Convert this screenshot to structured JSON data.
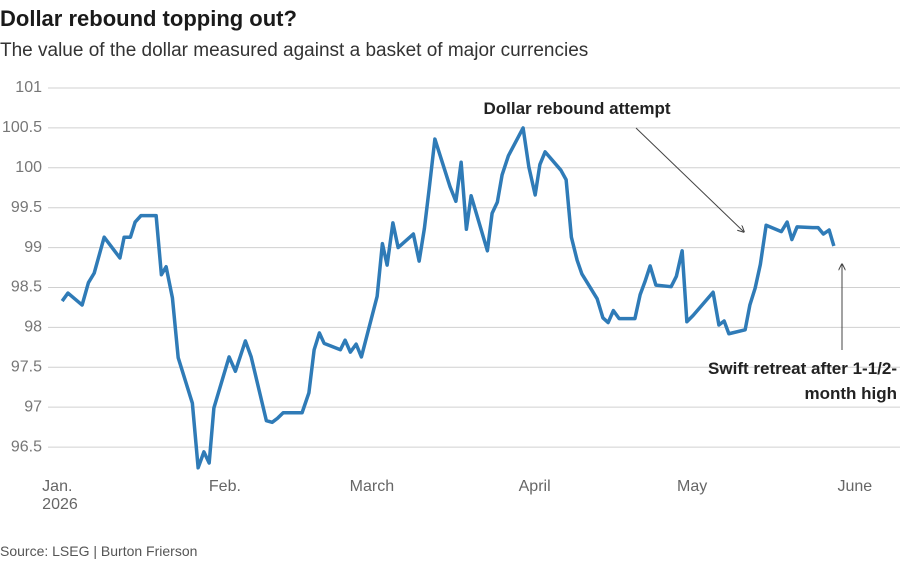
{
  "chart_data": {
    "type": "line",
    "title": "Dollar rebound topping out?",
    "subtitle": "The value of the dollar measured against a basket of major currencies",
    "source": "Source: LSEG | Burton Frierson",
    "annotations": [
      "Dollar rebound attempt",
      "Swift retreat after 1-1/2-\nmonth high"
    ],
    "x": [
      0,
      1.1,
      3.8,
      5.0,
      6.1,
      8.0,
      11.0,
      11.8,
      13.0,
      13.9,
      15.0,
      17.9,
      18.9,
      19.8,
      21.0,
      22.1,
      24.8,
      25.9,
      27.0,
      28.0,
      28.9,
      31.8,
      33.0,
      34.9,
      36.0,
      38.9,
      40.0,
      41.0,
      42.1,
      45.7,
      47.0,
      48.0,
      49.0,
      49.9,
      53.0,
      53.9,
      54.9,
      56.0,
      57.0,
      60.0,
      61.0,
      61.9,
      63.0,
      64.0,
      66.9,
      68.0,
      69.0,
      69.9,
      71.0,
      73.9,
      75.0,
      76.0,
      77.0,
      77.9,
      81.0,
      81.9,
      82.9,
      83.8,
      85.0,
      87.8,
      88.9,
      90.1,
      91.0,
      92.0,
      95.0,
      96.0,
      97.0,
      98.1,
      99.0,
      101.9,
      103.0,
      104.0,
      105.0,
      106.1,
      109.1,
      110.1,
      111.0,
      112.0,
      113.1,
      116.0,
      117.0,
      118.1,
      119.0,
      120.2,
      124.0,
      125.1,
      126.1,
      127.0,
      130.1,
      131.0,
      132.0,
      133.0,
      134.1,
      137.0,
      138.1,
      139.0,
      140.0,
      143.0,
      144.0,
      145.0,
      146.1,
      147.0
    ],
    "series": [
      {
        "color": "#2f7bb7",
        "values": [
          98.33,
          98.43,
          98.28,
          98.56,
          98.68,
          99.13,
          98.87,
          99.13,
          99.13,
          99.32,
          99.4,
          99.4,
          98.66,
          98.76,
          98.37,
          97.62,
          97.05,
          96.24,
          96.44,
          96.3,
          96.99,
          97.63,
          97.45,
          97.83,
          97.63,
          96.83,
          96.81,
          96.86,
          96.93,
          96.93,
          97.18,
          97.72,
          97.93,
          97.8,
          97.72,
          97.84,
          97.69,
          97.79,
          97.63,
          98.39,
          99.05,
          98.78,
          99.31,
          99.0,
          99.17,
          98.83,
          99.24,
          99.73,
          100.36,
          99.76,
          99.58,
          100.07,
          99.23,
          99.65,
          98.96,
          99.43,
          99.57,
          99.91,
          100.15,
          100.5,
          100.01,
          99.66,
          100.04,
          100.2,
          99.97,
          99.85,
          99.13,
          98.84,
          98.67,
          98.36,
          98.12,
          98.06,
          98.21,
          98.11,
          98.11,
          98.41,
          98.57,
          98.77,
          98.53,
          98.51,
          98.64,
          98.96,
          98.07,
          98.15,
          98.44,
          98.03,
          98.08,
          97.92,
          97.97,
          98.28,
          98.49,
          98.79,
          99.28,
          99.2,
          99.32,
          99.1,
          99.26,
          99.25,
          99.25,
          99.17,
          99.22,
          99.02
        ]
      }
    ],
    "xlim": [
      -2.7,
      159.6
    ],
    "xticks": [
      {
        "value": 0,
        "label": "Jan.\n2026"
      },
      {
        "value": 31,
        "label": "Feb."
      },
      {
        "value": 59,
        "label": "March"
      },
      {
        "value": 90,
        "label": "April"
      },
      {
        "value": 120,
        "label": "May"
      },
      {
        "value": 151,
        "label": "June"
      }
    ],
    "ylim": [
      96.2,
      101
    ],
    "yticks": [
      96.5,
      97,
      97.5,
      98,
      98.5,
      99,
      99.5,
      100,
      100.5,
      101
    ],
    "grid": true
  }
}
